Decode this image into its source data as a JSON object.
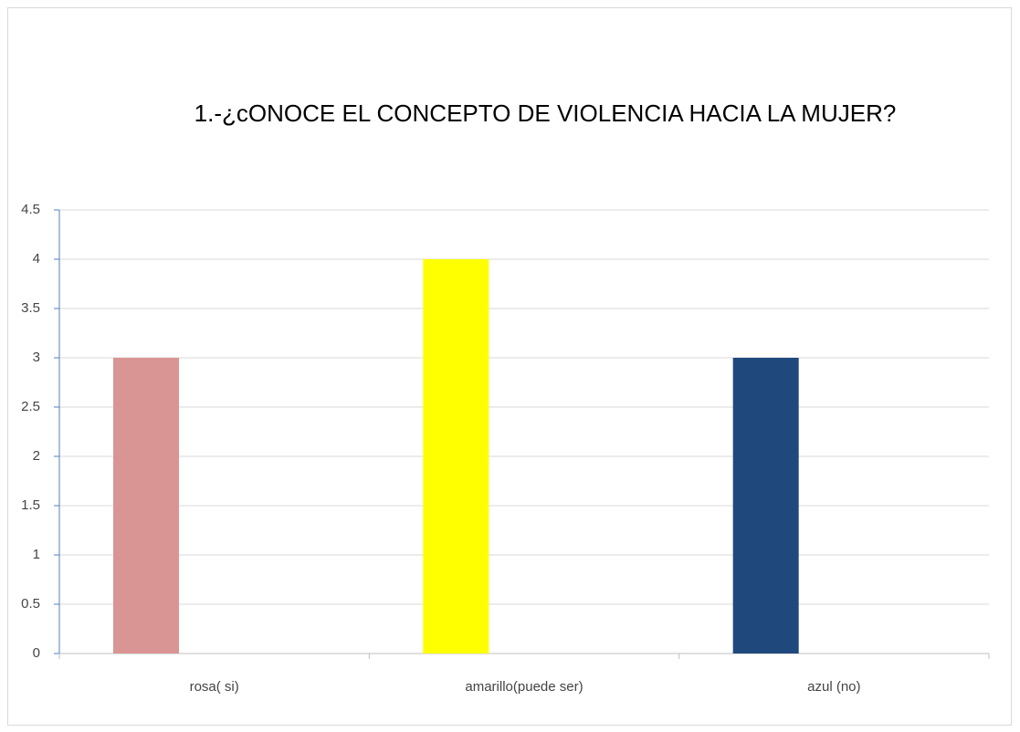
{
  "chart_data": {
    "type": "bar",
    "title": "1.-¿cONOCE EL CONCEPTO DE VIOLENCIA HACIA LA MUJER?",
    "categories": [
      "rosa( si)",
      "amarillo(puede ser)",
      "azul (no)"
    ],
    "values": [
      3,
      4,
      3
    ],
    "colors": [
      "#d99594",
      "#ffff00",
      "#1f497d"
    ],
    "ylim": [
      0,
      4.5
    ],
    "yticks": [
      0,
      0.5,
      1,
      1.5,
      2,
      2.5,
      3,
      3.5,
      4,
      4.5
    ],
    "grid": true
  }
}
